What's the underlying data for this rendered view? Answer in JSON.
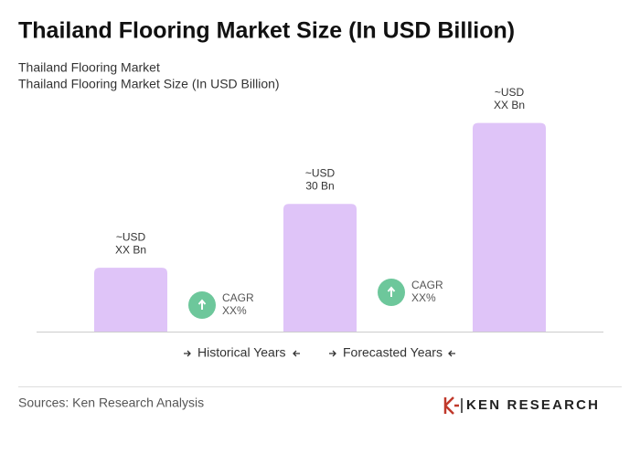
{
  "header": {
    "title": "Thailand Flooring Market Size (In USD Billion)",
    "subtitle": "Thailand Flooring Market"
  },
  "chart_data": {
    "type": "bar",
    "title": "Thailand Flooring Market Size (In USD Billion)",
    "categories": [
      null,
      null,
      null
    ],
    "values": [
      15,
      30,
      49
    ],
    "value_labels": [
      [
        "~USD",
        "XX Bn"
      ],
      [
        "~USD",
        "30 Bn"
      ],
      [
        "~USD",
        "XX Bn"
      ]
    ],
    "color": "#dfc4f8",
    "ylim": [
      0,
      50
    ]
  },
  "annotations": [
    {
      "label": [
        "CAGR",
        "XX%"
      ],
      "color": "#6dc79b"
    },
    {
      "label": [
        "CAGR",
        "XX%"
      ],
      "color": "#6dc79b"
    }
  ],
  "legend": [
    "Historical Years",
    "Forecasted Years"
  ],
  "source": "Sources: Ken Research Analysis",
  "logo": "KEN RESEARCH"
}
